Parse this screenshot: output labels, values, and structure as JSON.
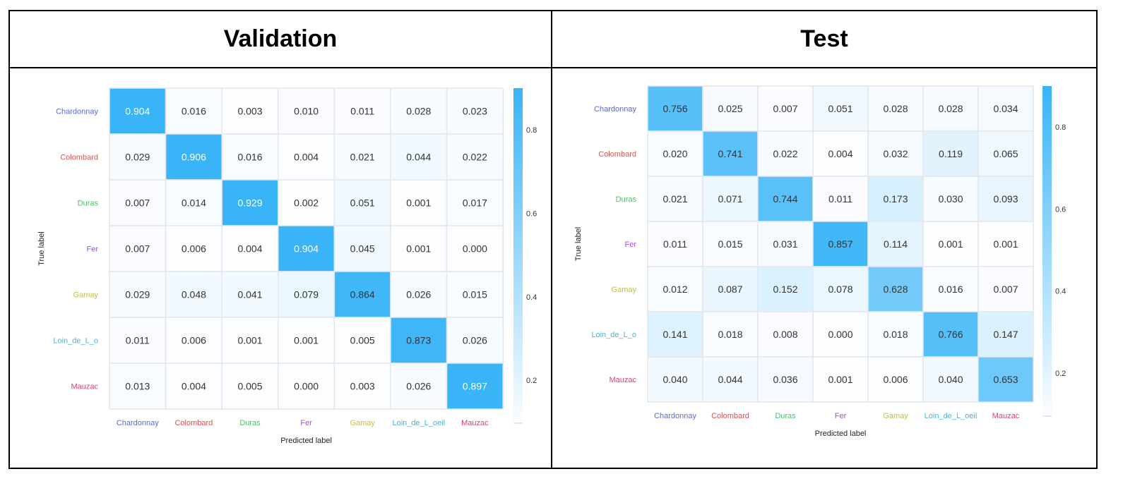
{
  "panels": [
    {
      "title": "Validation"
    },
    {
      "title": "Test"
    }
  ],
  "chart_data": [
    {
      "type": "heatmap",
      "title": "Validation",
      "xlabel": "Predicted label",
      "ylabel": "True label",
      "x_categories": [
        "Chardonnay",
        "Colombard",
        "Duras",
        "Fer",
        "Gamay",
        "Loin_de_L_oeil",
        "Mauzac"
      ],
      "y_categories": [
        "Chardonnay",
        "Colombard",
        "Duras",
        "Fer",
        "Gamay",
        "Loin_de_L_o",
        "Mauzac"
      ],
      "values": [
        [
          0.904,
          0.016,
          0.003,
          0.01,
          0.011,
          0.028,
          0.023
        ],
        [
          0.029,
          0.906,
          0.016,
          0.004,
          0.021,
          0.044,
          0.022
        ],
        [
          0.007,
          0.014,
          0.929,
          0.002,
          0.051,
          0.001,
          0.017
        ],
        [
          0.007,
          0.006,
          0.004,
          0.904,
          0.045,
          0.001,
          0.0
        ],
        [
          0.029,
          0.048,
          0.041,
          0.079,
          0.864,
          0.026,
          0.015
        ],
        [
          0.011,
          0.006,
          0.001,
          0.001,
          0.005,
          0.873,
          0.026
        ],
        [
          0.013,
          0.004,
          0.005,
          0.0,
          0.003,
          0.026,
          0.897
        ]
      ],
      "colorbar_ticks": [
        "0.2",
        "0.4",
        "0.6",
        "0.8"
      ],
      "colorbar_range": [
        0.097,
        0.9
      ]
    },
    {
      "type": "heatmap",
      "title": "Test",
      "xlabel": "Predicted label",
      "ylabel": "True label",
      "x_categories": [
        "Chardonnay",
        "Colombard",
        "Duras",
        "Fer",
        "Gamay",
        "Loin_de_L_oeil",
        "Mauzac"
      ],
      "y_categories": [
        "Chardonnay",
        "Colombard",
        "Duras",
        "Fer",
        "Gamay",
        "Loin_de_L_o",
        "Mauzac"
      ],
      "values": [
        [
          0.756,
          0.025,
          0.007,
          0.051,
          0.028,
          0.028,
          0.034
        ],
        [
          0.02,
          0.741,
          0.022,
          0.004,
          0.032,
          0.119,
          0.065
        ],
        [
          0.021,
          0.071,
          0.744,
          0.011,
          0.173,
          0.03,
          0.093
        ],
        [
          0.011,
          0.015,
          0.031,
          0.857,
          0.114,
          0.001,
          0.001
        ],
        [
          0.012,
          0.087,
          0.152,
          0.078,
          0.628,
          0.016,
          0.007
        ],
        [
          0.141,
          0.018,
          0.008,
          0.0,
          0.018,
          0.766,
          0.147
        ],
        [
          0.04,
          0.044,
          0.036,
          0.001,
          0.006,
          0.04,
          0.653
        ]
      ],
      "colorbar_ticks": [
        "0.2",
        "0.4",
        "0.6",
        "0.8"
      ],
      "colorbar_range": [
        0.095,
        0.9
      ]
    }
  ],
  "colors": {
    "cell_max": "#38b4f7",
    "cell_min": "#fcfdff",
    "grid": "#e3e7eb",
    "labels": [
      "#5a6bd3",
      "#d9534f",
      "#4fbf6b",
      "#a44fe0",
      "#c2bd45",
      "#4fb1d8",
      "#cf4578"
    ]
  }
}
